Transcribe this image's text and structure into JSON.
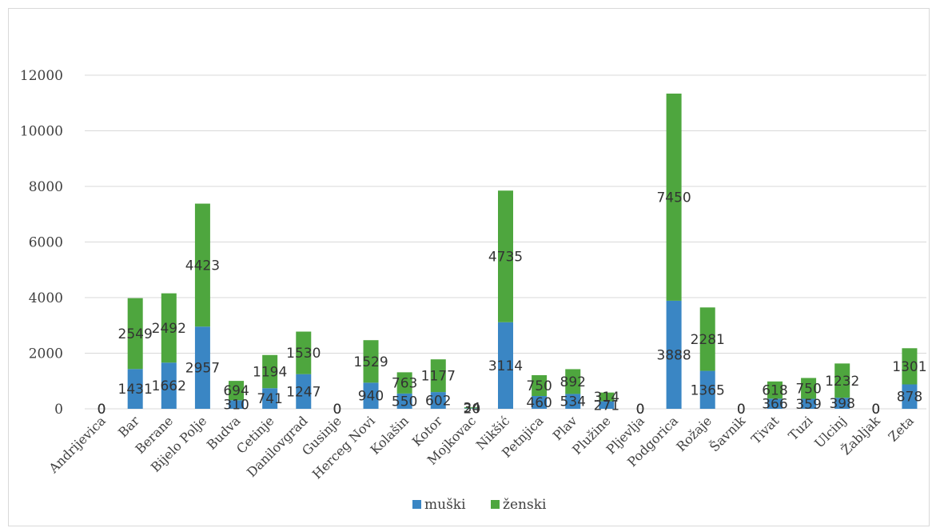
{
  "chart_data": {
    "type": "bar",
    "stacked": true,
    "title": "",
    "xlabel": "",
    "ylabel": "",
    "ylim": [
      0,
      12000
    ],
    "yticks": [
      0,
      2000,
      4000,
      6000,
      8000,
      10000,
      12000
    ],
    "grid": true,
    "legend_position": "bottom",
    "categories": [
      "Andrijevica",
      "Bar",
      "Berane",
      "Bijelo Polje",
      "Budva",
      "Cetinje",
      "Danilovgrad",
      "Gusinje",
      "Herceg Novi",
      "Kolašin",
      "Kotor",
      "Mojkovac",
      "Nikšić",
      "Petnjica",
      "Plav",
      "Plužine",
      "Pljevlja",
      "Podgorica",
      "Rožaje",
      "Šavnik",
      "Tivat",
      "Tuzi",
      "Ulcinj",
      "Žabljak",
      "Zeta"
    ],
    "series": [
      {
        "name": "muški",
        "color": "#3a86c4",
        "values": [
          0,
          1431,
          1662,
          2957,
          310,
          741,
          1247,
          0,
          940,
          550,
          602,
          20,
          3114,
          460,
          534,
          271,
          0,
          3888,
          1365,
          0,
          366,
          359,
          398,
          0,
          878
        ]
      },
      {
        "name": "ženski",
        "color": "#4ea63e",
        "values": [
          0,
          2549,
          2492,
          4423,
          694,
          1194,
          1530,
          0,
          1529,
          763,
          1177,
          34,
          4735,
          750,
          892,
          314,
          0,
          7450,
          2281,
          0,
          618,
          750,
          1232,
          0,
          1301
        ]
      }
    ]
  }
}
